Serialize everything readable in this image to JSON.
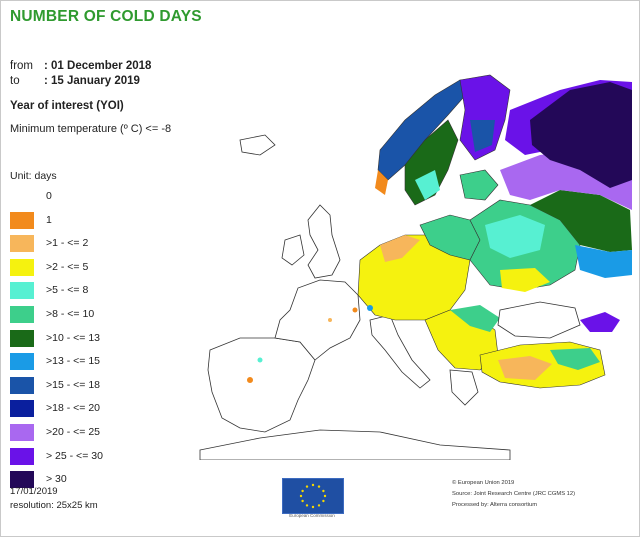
{
  "title": "NUMBER OF COLD DAYS",
  "period": {
    "from_label": "from",
    "from_value": ": 01 December 2018",
    "to_label": "to",
    "to_value": ": 15 January 2019"
  },
  "yoi_label": "Year of interest (YOI)",
  "threshold": "Minimum temperature (º C) <= -8",
  "legend": {
    "unit": "Unit: days",
    "items": [
      {
        "label": "0",
        "color": "#ffffff"
      },
      {
        "label": "1",
        "color": "#f28a1c"
      },
      {
        "label": ">1 - <= 2",
        "color": "#f7b65b"
      },
      {
        "label": ">2 - <= 5",
        "color": "#f5f20f"
      },
      {
        "label": ">5 - <= 8",
        "color": "#57f0d2"
      },
      {
        "label": ">8 - <= 10",
        "color": "#3dcf8b"
      },
      {
        "label": ">10 - <= 13",
        "color": "#1a6a18"
      },
      {
        "label": ">13 - <= 15",
        "color": "#1a9be6"
      },
      {
        "label": ">15 - <= 18",
        "color": "#1a54a8"
      },
      {
        "label": ">18 - <= 20",
        "color": "#0a1f9e"
      },
      {
        "label": ">20 - <= 25",
        "color": "#a968f0"
      },
      {
        "label": "> 25 - <= 30",
        "color": "#6a12e8"
      },
      {
        "label": "> 30",
        "color": "#230858"
      }
    ]
  },
  "footer_left": {
    "date": "17/01/2019",
    "resolution": "resolution: 25x25 km"
  },
  "footer_right": {
    "copyright": "© European Union 2019",
    "source": "Source: Joint Research Centre (JRC CGMS 12)",
    "processed": "Processed by: Alterra consortium"
  },
  "logo_caption": "European Commission"
}
